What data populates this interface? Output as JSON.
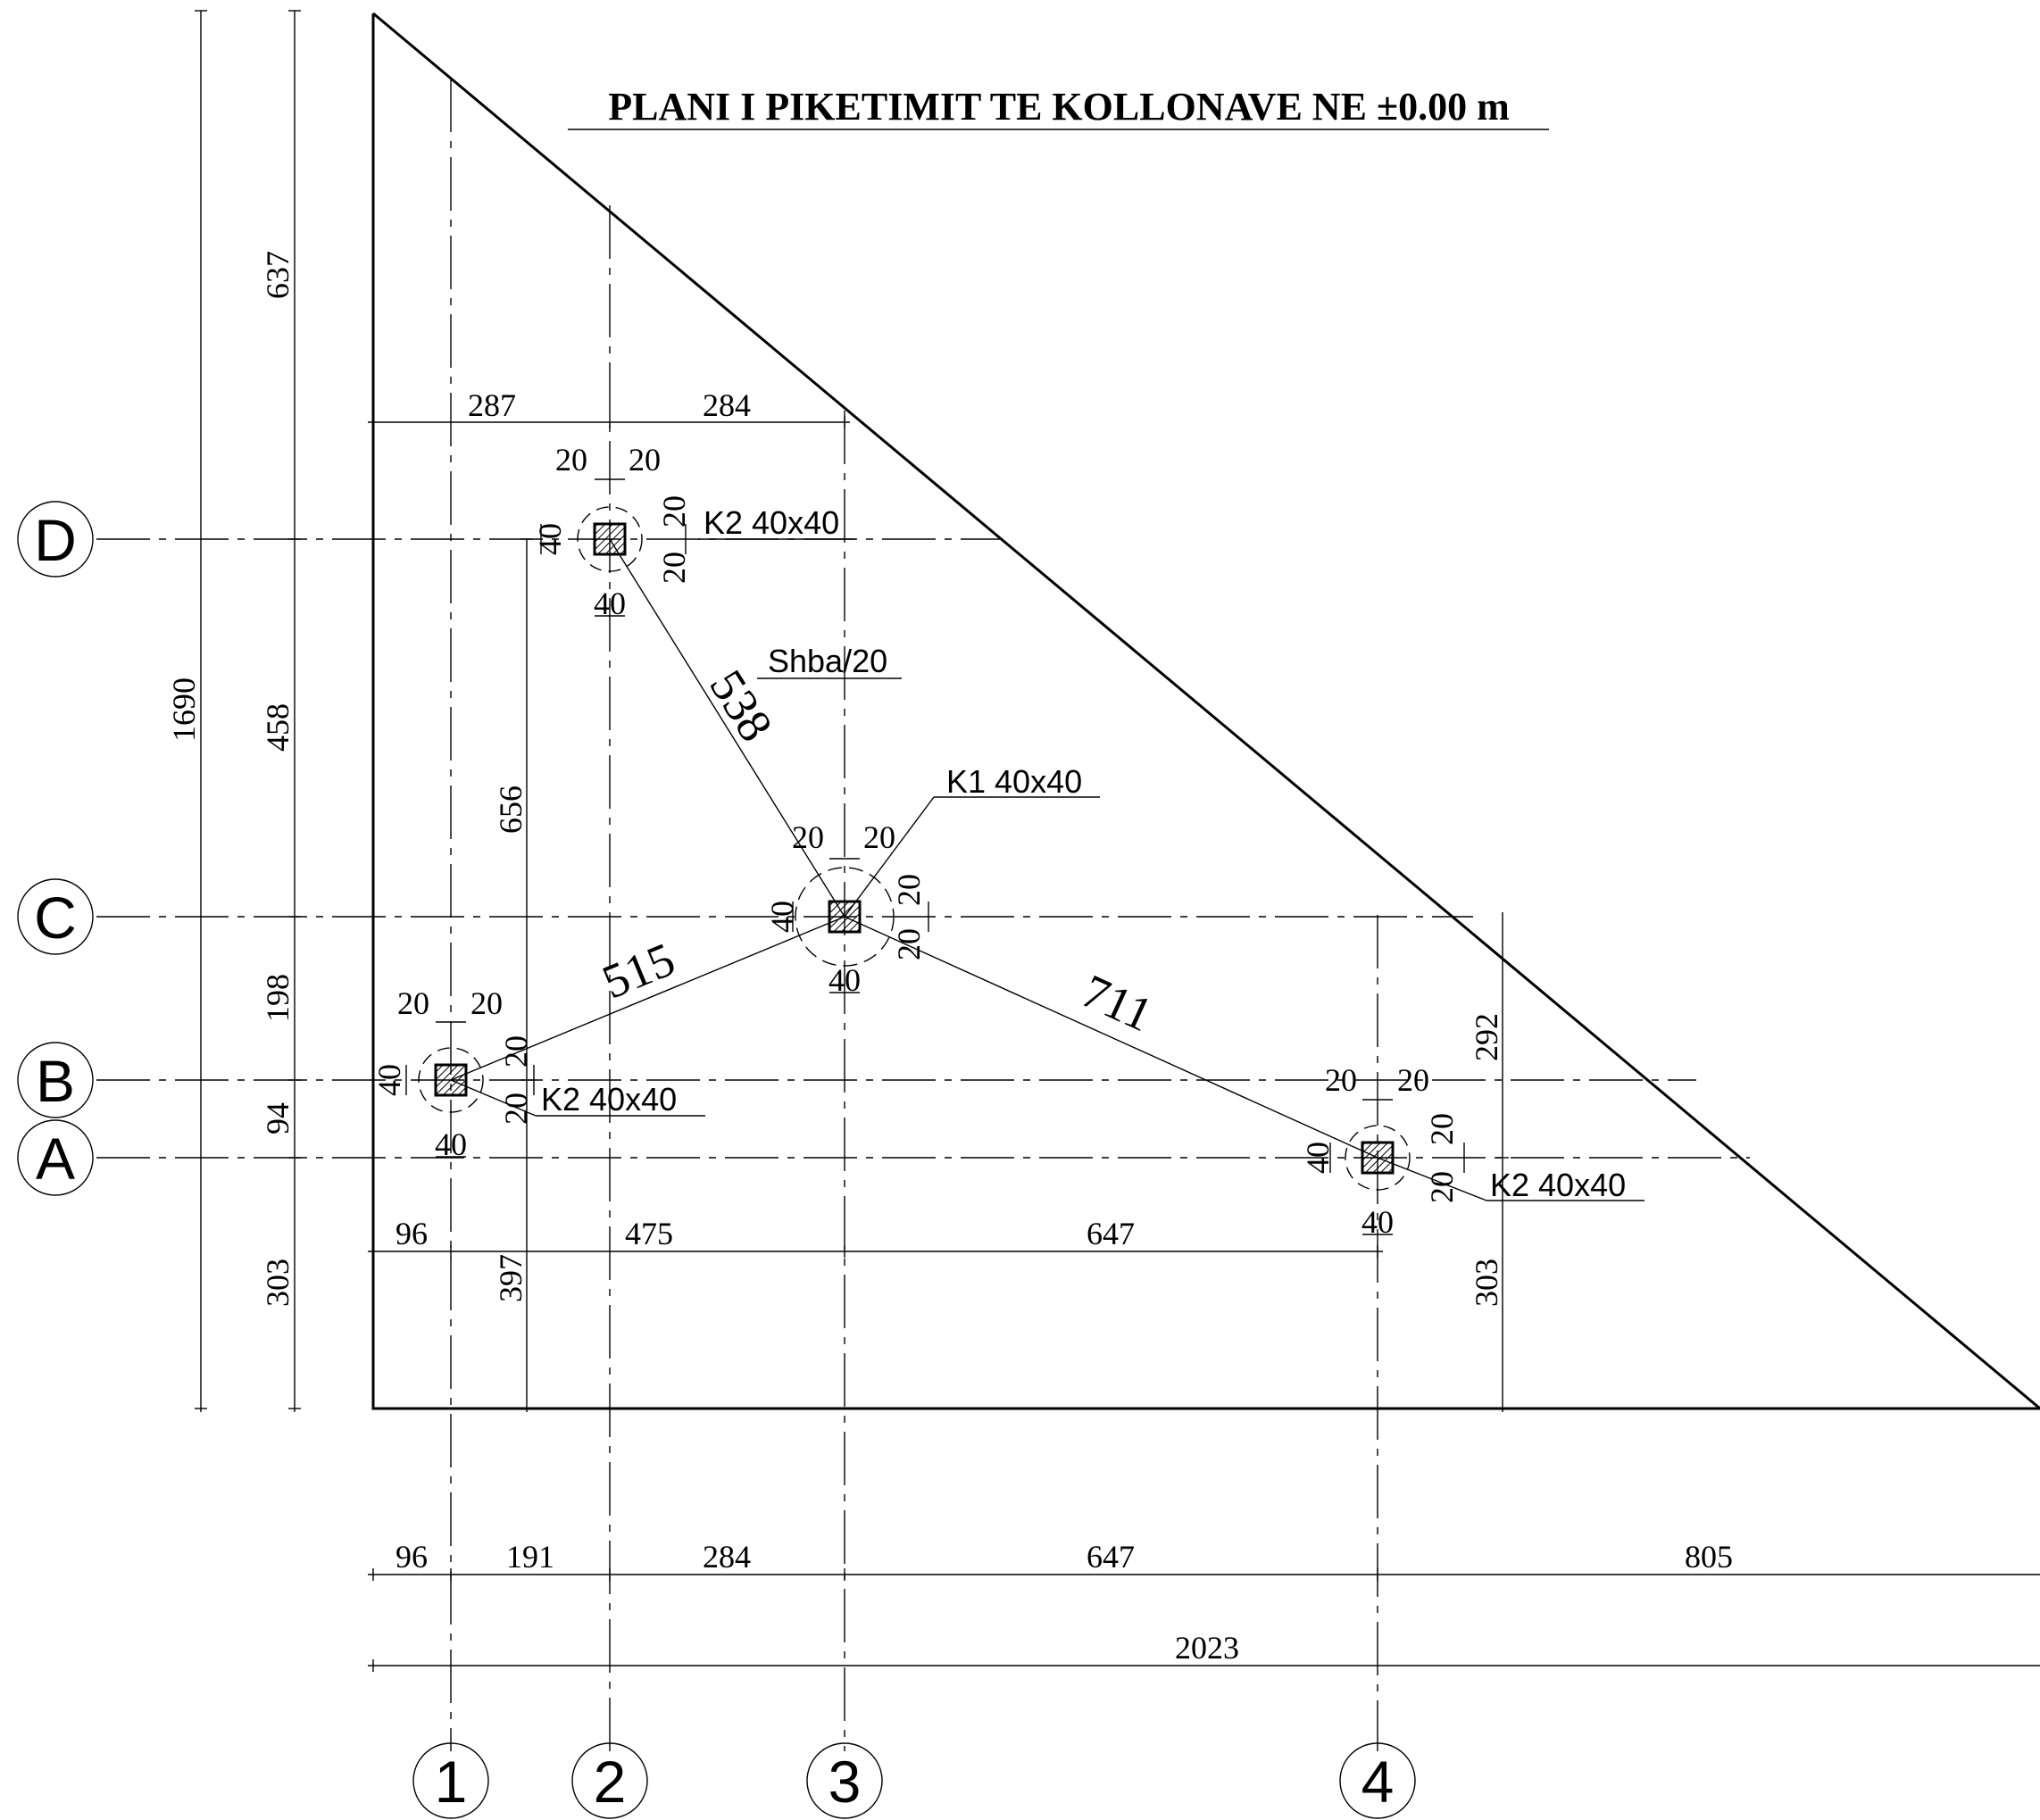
{
  "title": "PLANI I PIKETIMIT TE KOLLONAVE NE ±0.00 m",
  "axes_rows": [
    "D",
    "C",
    "B",
    "A"
  ],
  "axes_cols": [
    "1",
    "2",
    "3",
    "4"
  ],
  "left_dims": {
    "total": "1690",
    "segments": [
      "637",
      "458",
      "198",
      "94",
      "303"
    ]
  },
  "inner_dims": {
    "v656": "656",
    "v397": "397",
    "v292": "292",
    "v303r": "303"
  },
  "top_dims": [
    "287",
    "284"
  ],
  "mid_dims": [
    "96",
    "475",
    "647"
  ],
  "bottom_dims": [
    "96",
    "191",
    "284",
    "647",
    "805"
  ],
  "bottom_total": "2023",
  "links": {
    "l538": "538",
    "l515": "515",
    "l711": "711",
    "slab": "Shba/20"
  },
  "columns": {
    "k2_d": "K2 40x40",
    "k1_c": "K1 40x40",
    "k2_b": "K2 40x40",
    "k2_a": "K2 40x40"
  },
  "col_dims": {
    "twenty": "20",
    "forty": "40"
  }
}
